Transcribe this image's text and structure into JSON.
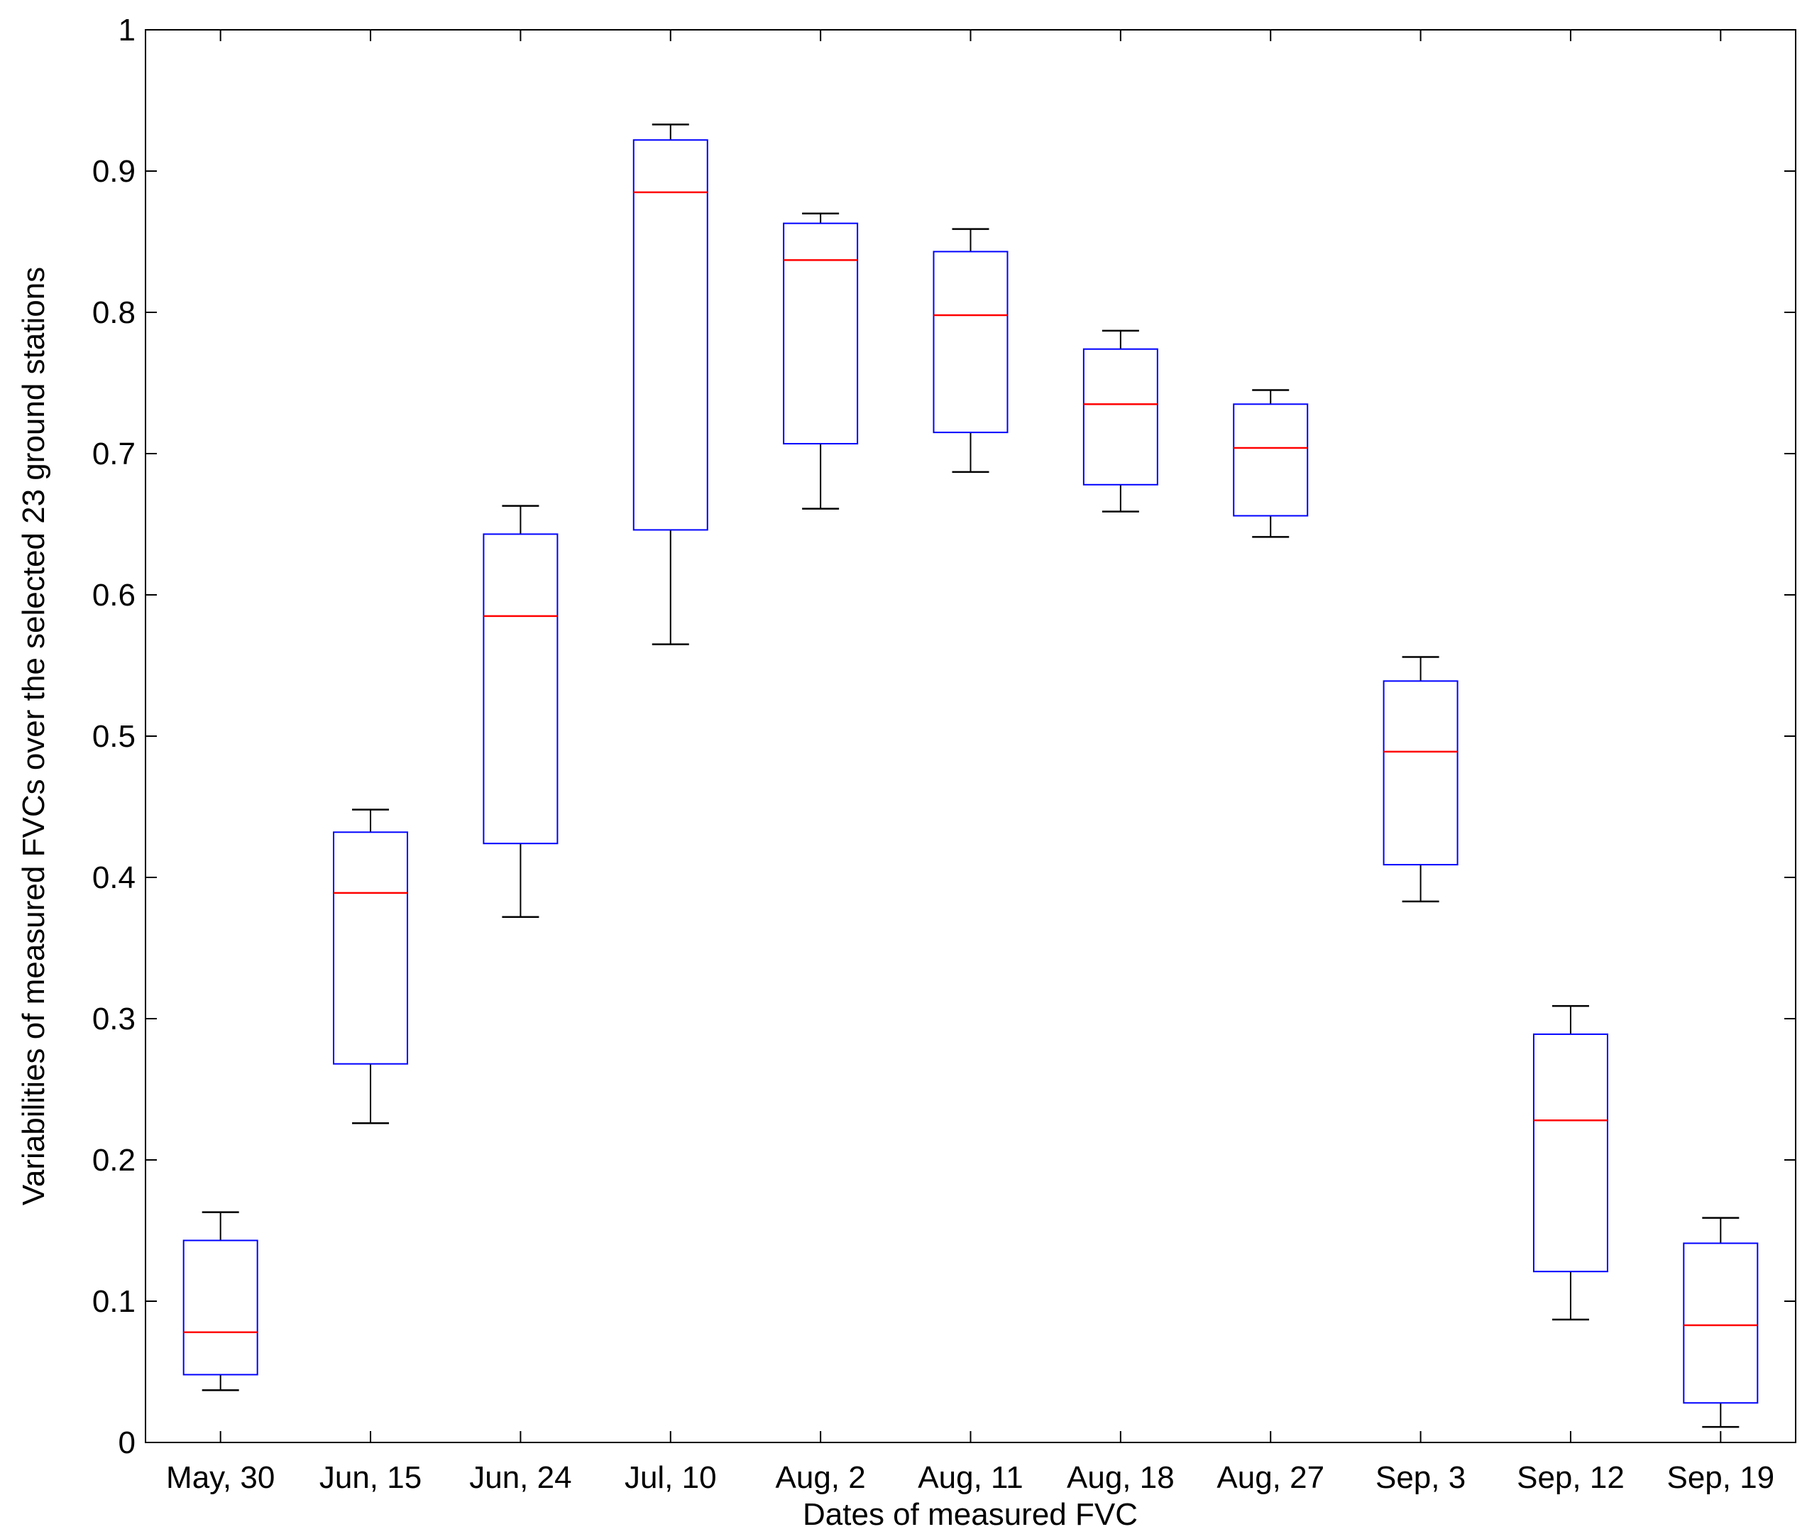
{
  "chart_data": {
    "type": "box",
    "title": "",
    "xlabel": "Dates of measured FVC",
    "ylabel": "Variabilities of measured FVCs over the selected 23 ground stations",
    "ylim": [
      0,
      1
    ],
    "yticks": [
      0,
      0.1,
      0.2,
      0.3,
      0.4,
      0.5,
      0.6,
      0.7,
      0.8,
      0.9,
      1
    ],
    "ytick_labels": [
      "0",
      "0.1",
      "0.2",
      "0.3",
      "0.4",
      "0.5",
      "0.6",
      "0.7",
      "0.8",
      "0.9",
      "1"
    ],
    "grid": false,
    "categories": [
      "May, 30",
      "Jun, 15",
      "Jun, 24",
      "Jul, 10",
      "Aug, 2",
      "Aug, 11",
      "Aug, 18",
      "Aug, 27",
      "Sep, 3",
      "Sep, 12",
      "Sep, 19"
    ],
    "boxes": [
      {
        "whisker_low": 0.037,
        "q1": 0.048,
        "median": 0.078,
        "q3": 0.143,
        "whisker_high": 0.163
      },
      {
        "whisker_low": 0.226,
        "q1": 0.268,
        "median": 0.389,
        "q3": 0.432,
        "whisker_high": 0.448
      },
      {
        "whisker_low": 0.372,
        "q1": 0.424,
        "median": 0.585,
        "q3": 0.643,
        "whisker_high": 0.663
      },
      {
        "whisker_low": 0.565,
        "q1": 0.646,
        "median": 0.885,
        "q3": 0.922,
        "whisker_high": 0.933
      },
      {
        "whisker_low": 0.661,
        "q1": 0.707,
        "median": 0.837,
        "q3": 0.863,
        "whisker_high": 0.87
      },
      {
        "whisker_low": 0.687,
        "q1": 0.715,
        "median": 0.798,
        "q3": 0.843,
        "whisker_high": 0.859
      },
      {
        "whisker_low": 0.659,
        "q1": 0.678,
        "median": 0.735,
        "q3": 0.774,
        "whisker_high": 0.787
      },
      {
        "whisker_low": 0.641,
        "q1": 0.656,
        "median": 0.704,
        "q3": 0.735,
        "whisker_high": 0.745
      },
      {
        "whisker_low": 0.383,
        "q1": 0.409,
        "median": 0.489,
        "q3": 0.539,
        "whisker_high": 0.556
      },
      {
        "whisker_low": 0.087,
        "q1": 0.121,
        "median": 0.228,
        "q3": 0.289,
        "whisker_high": 0.309
      },
      {
        "whisker_low": 0.011,
        "q1": 0.028,
        "median": 0.083,
        "q3": 0.141,
        "whisker_high": 0.159
      }
    ],
    "colors": {
      "box": "#0000ff",
      "median": "#ff0000",
      "whisker": "#000000",
      "axis": "#000000"
    }
  }
}
